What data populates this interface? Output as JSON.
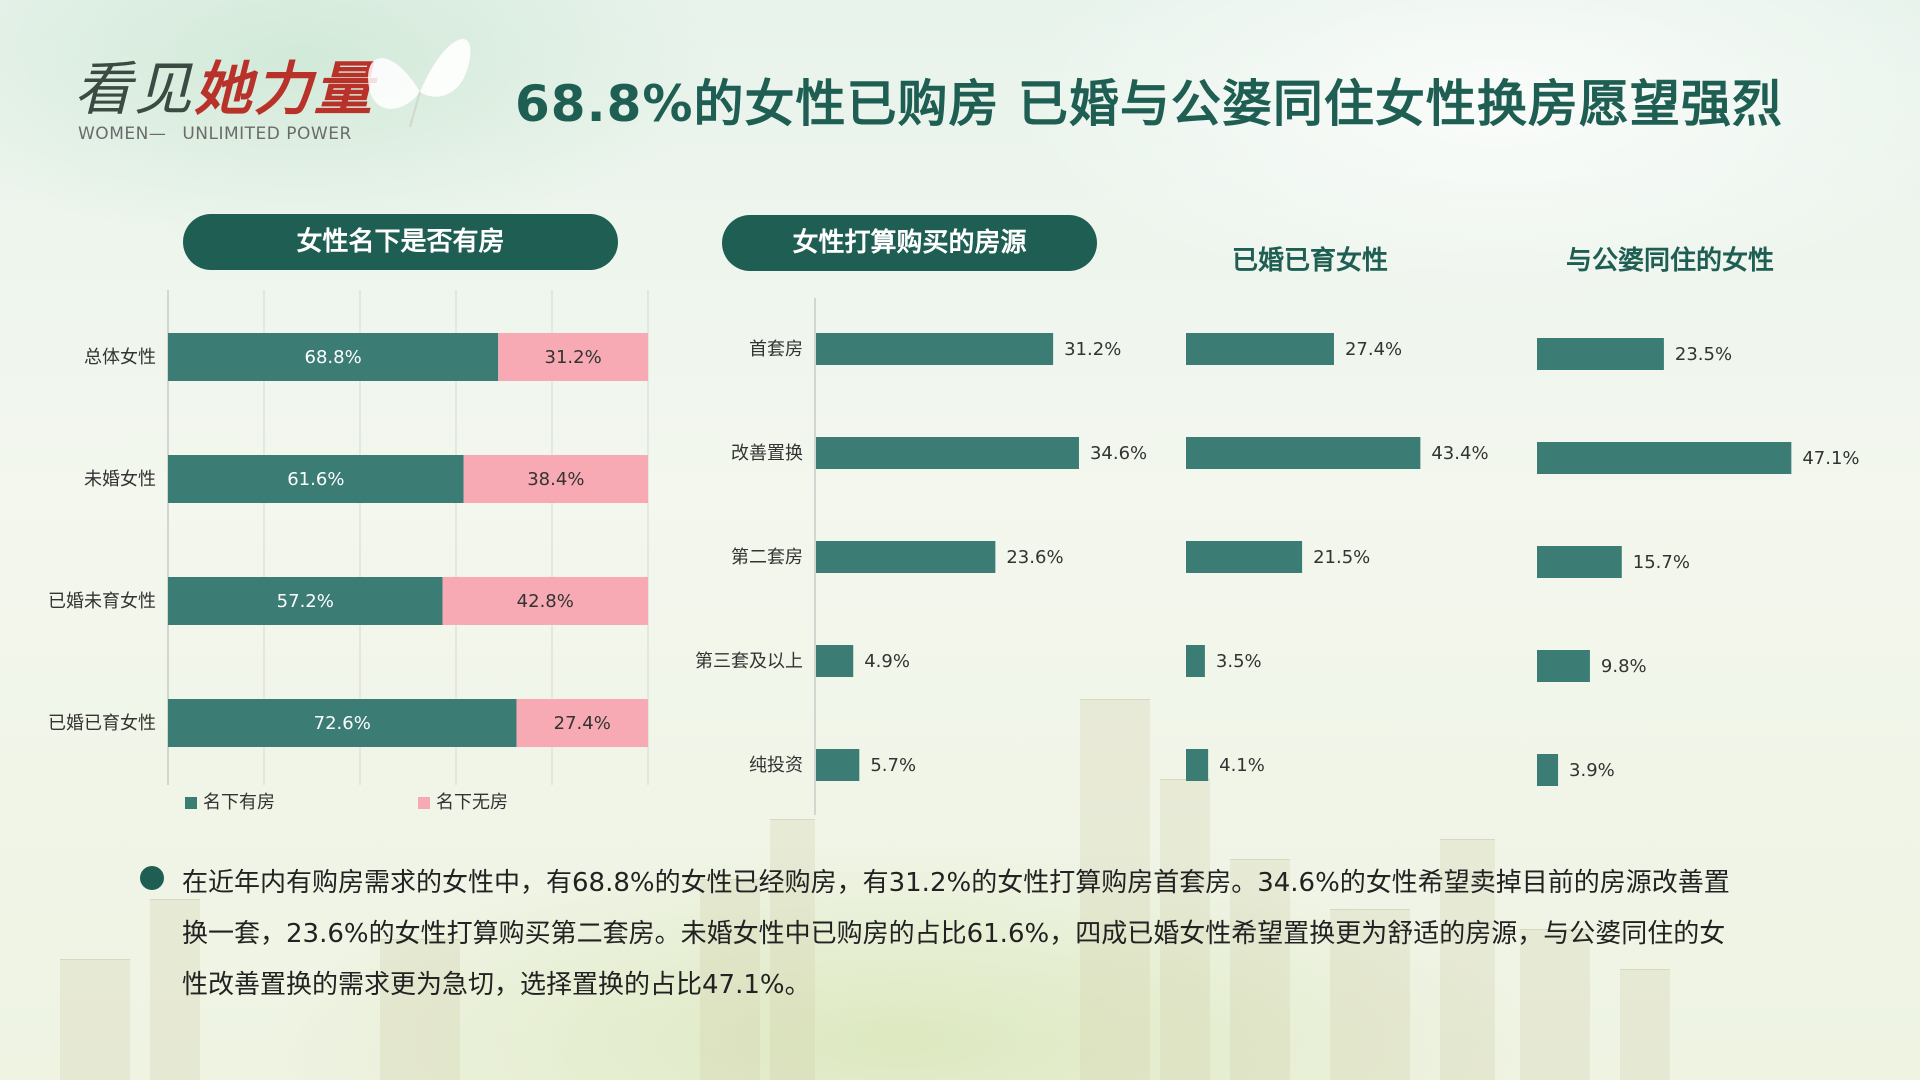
{
  "header": {
    "logo_cn_part1": "看见",
    "logo_cn_part2": "她力量",
    "logo_en_part1": "WOMEN—",
    "logo_en_part2": "UNLIMITED POWER",
    "title": "68.8%的女性已购房 已婚与公婆同住女性换房愿望强烈"
  },
  "sections": {
    "ownership_title": "女性名下是否有房",
    "purchase_title": "女性打算购买的房源",
    "married_title": "已婚已育女性",
    "inlaws_title": "与公婆同住的女性"
  },
  "legend": {
    "has_house": "名下有房",
    "no_house": "名下无房"
  },
  "colors": {
    "teal": "#3b7c74",
    "pink": "#f7aab4",
    "dark_green": "#1f5e52"
  },
  "chart_data": [
    {
      "type": "bar",
      "orientation": "horizontal",
      "stacked": true,
      "percent_stacked": true,
      "title": "女性名下是否有房",
      "categories": [
        "总体女性",
        "未婚女性",
        "已婚未育女性",
        "已婚已育女性"
      ],
      "series": [
        {
          "name": "名下有房",
          "values": [
            68.8,
            61.6,
            57.2,
            72.6
          ],
          "labels": [
            "68.8%",
            "61.6%",
            "57.2%",
            "72.6%"
          ]
        },
        {
          "name": "名下无房",
          "values": [
            31.2,
            38.4,
            42.8,
            27.4
          ],
          "labels": [
            "31.2%",
            "38.4%",
            "42.8%",
            "27.4%"
          ]
        }
      ],
      "xlim": [
        0,
        100
      ],
      "grid": true,
      "legend": "bottom"
    },
    {
      "type": "bar",
      "orientation": "horizontal",
      "title": "女性打算购买的房源",
      "categories": [
        "首套房",
        "改善置换",
        "第二套房",
        "第三套及以上",
        "纯投资"
      ],
      "values": [
        31.2,
        34.6,
        23.6,
        4.9,
        5.7
      ],
      "labels": [
        "31.2%",
        "34.6%",
        "23.6%",
        "4.9%",
        "5.7%"
      ]
    },
    {
      "type": "bar",
      "orientation": "horizontal",
      "title": "已婚已育女性",
      "categories": [
        "首套房",
        "改善置换",
        "第二套房",
        "第三套及以上",
        "纯投资"
      ],
      "values": [
        27.4,
        43.4,
        21.5,
        3.5,
        4.1
      ],
      "labels": [
        "27.4%",
        "43.4%",
        "21.5%",
        "3.5%",
        "4.1%"
      ]
    },
    {
      "type": "bar",
      "orientation": "horizontal",
      "title": "与公婆同住的女性",
      "categories": [
        "首套房",
        "改善置换",
        "第二套房",
        "第三套及以上",
        "纯投资"
      ],
      "values": [
        23.5,
        47.1,
        15.7,
        9.8,
        3.9
      ],
      "labels": [
        "23.5%",
        "47.1%",
        "15.7%",
        "9.8%",
        "3.9%"
      ]
    }
  ],
  "summary": {
    "text": "在近年内有购房需求的女性中，有68.8%的女性已经购房，有31.2%的女性打算购房首套房。34.6%的女性希望卖掉目前的房源改善置换一套，23.6%的女性打算购买第二套房。未婚女性中已购房的占比61.6%，四成已婚女性希望置换更为舒适的房源，与公婆同住的女性改善置换的需求更为急切，选择置换的占比47.1%。"
  }
}
